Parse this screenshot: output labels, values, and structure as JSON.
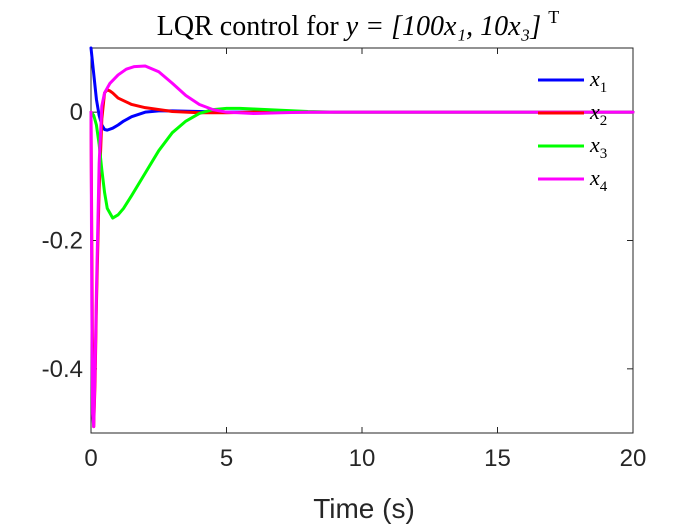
{
  "chart_data": {
    "type": "line",
    "title": {
      "prefix": "LQR control for ",
      "math": "y = [100x₁, 10x₃]",
      "superscript": "T"
    },
    "xlabel": "Time (s)",
    "ylabel": "",
    "xlim": [
      0,
      20
    ],
    "ylim": [
      -0.5,
      0.1
    ],
    "xticks": [
      0,
      5,
      10,
      15,
      20
    ],
    "yticks": [
      0,
      -0.2,
      -0.4
    ],
    "xtick_labels": [
      "0",
      "5",
      "10",
      "15",
      "20"
    ],
    "ytick_labels": [
      "0",
      "-0.2",
      "-0.4"
    ],
    "grid": false,
    "legend_position": "top-right",
    "series": [
      {
        "name": "x1",
        "label_base": "x",
        "label_sub": "1",
        "color": "#0000ff",
        "x": [
          0,
          0.1,
          0.2,
          0.3,
          0.4,
          0.5,
          0.6,
          0.8,
          1,
          1.2,
          1.5,
          2,
          2.5,
          3,
          4,
          5,
          6,
          8,
          10,
          20
        ],
        "y": [
          0.1,
          0.06,
          0.02,
          -0.005,
          -0.02,
          -0.027,
          -0.028,
          -0.025,
          -0.02,
          -0.014,
          -0.007,
          0,
          0.002,
          0.002,
          0.001,
          0,
          0,
          0,
          0,
          0
        ]
      },
      {
        "name": "x2",
        "label_base": "x",
        "label_sub": "2",
        "color": "#ff0000",
        "x": [
          0,
          0.05,
          0.1,
          0.15,
          0.2,
          0.3,
          0.4,
          0.5,
          0.6,
          0.7,
          0.8,
          1,
          1.5,
          2,
          3,
          4,
          5,
          6,
          8,
          10,
          20
        ],
        "y": [
          0,
          -0.35,
          -0.49,
          -0.42,
          -0.3,
          -0.12,
          -0.01,
          0.03,
          0.035,
          0.033,
          0.03,
          0.022,
          0.012,
          0.007,
          0.001,
          -0.001,
          -0.001,
          0,
          0,
          0,
          0
        ]
      },
      {
        "name": "x3",
        "label_base": "x",
        "label_sub": "3",
        "color": "#00ff00",
        "x": [
          0,
          0.1,
          0.2,
          0.3,
          0.4,
          0.5,
          0.6,
          0.8,
          1,
          1.2,
          1.5,
          2,
          2.5,
          3,
          3.5,
          4,
          4.5,
          5,
          5.5,
          6,
          7,
          8,
          9,
          10,
          20
        ],
        "y": [
          0,
          -0.005,
          -0.02,
          -0.05,
          -0.09,
          -0.125,
          -0.15,
          -0.165,
          -0.16,
          -0.15,
          -0.13,
          -0.095,
          -0.06,
          -0.032,
          -0.014,
          -0.002,
          0.004,
          0.006,
          0.006,
          0.005,
          0.003,
          0.001,
          0,
          0,
          0
        ]
      },
      {
        "name": "x4",
        "label_base": "x",
        "label_sub": "4",
        "color": "#ff00ff",
        "x": [
          0,
          0.03,
          0.06,
          0.1,
          0.15,
          0.2,
          0.3,
          0.4,
          0.5,
          0.7,
          1,
          1.3,
          1.6,
          2,
          2.5,
          3,
          3.5,
          4,
          4.5,
          5,
          6,
          7,
          8,
          10,
          20
        ],
        "y": [
          0,
          -0.3,
          -0.47,
          -0.49,
          -0.4,
          -0.28,
          -0.08,
          0.01,
          0.03,
          0.045,
          0.058,
          0.067,
          0.071,
          0.072,
          0.063,
          0.045,
          0.026,
          0.012,
          0.004,
          0,
          -0.002,
          -0.001,
          0,
          0,
          0
        ]
      }
    ]
  }
}
